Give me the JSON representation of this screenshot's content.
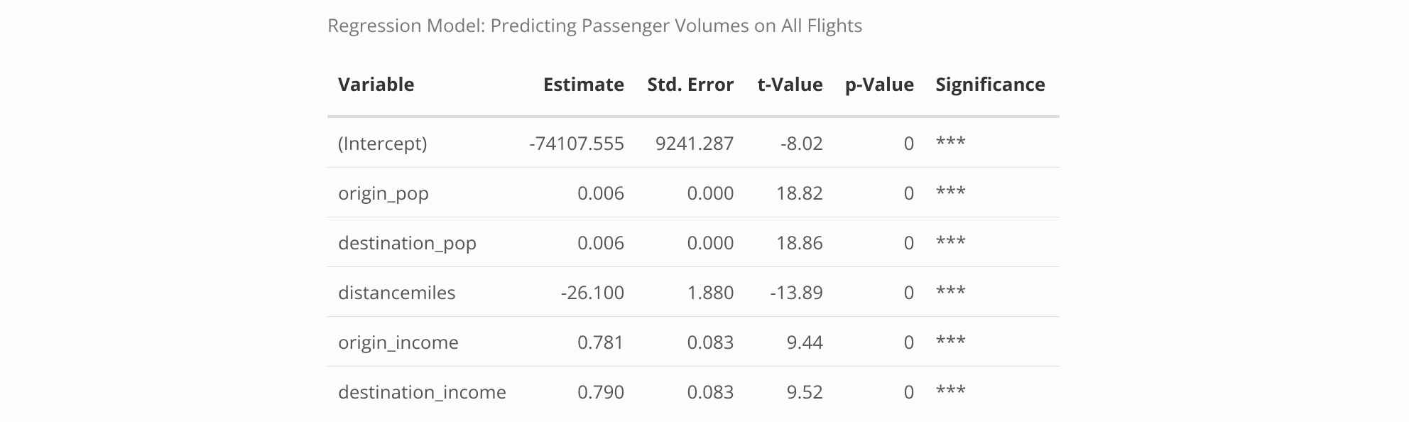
{
  "caption": "Regression Model: Predicting Passenger Volumes on All Flights",
  "columns": [
    "Variable",
    "Estimate",
    "Std. Error",
    "t-Value",
    "p-Value",
    "Significance"
  ],
  "rows": [
    [
      "(Intercept)",
      "-74107.555",
      "9241.287",
      "-8.02",
      "0",
      "***"
    ],
    [
      "origin_pop",
      "0.006",
      "0.000",
      "18.82",
      "0",
      "***"
    ],
    [
      "destination_pop",
      "0.006",
      "0.000",
      "18.86",
      "0",
      "***"
    ],
    [
      "distancemiles",
      "-26.100",
      "1.880",
      "-13.89",
      "0",
      "***"
    ],
    [
      "origin_income",
      "0.781",
      "0.083",
      "9.44",
      "0",
      "***"
    ],
    [
      "destination_income",
      "0.790",
      "0.083",
      "9.52",
      "0",
      "***"
    ]
  ]
}
